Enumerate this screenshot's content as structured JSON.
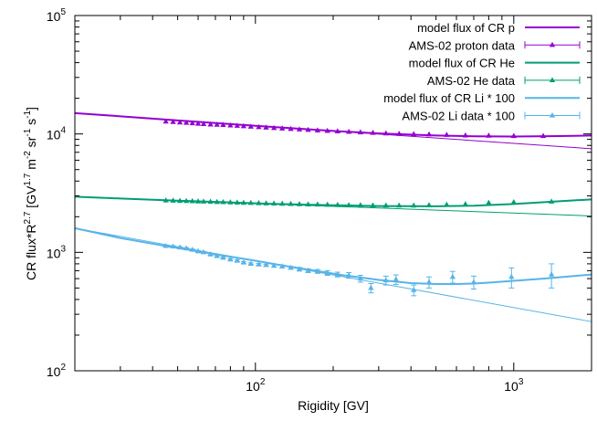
{
  "chart_data": {
    "type": "line",
    "title": "",
    "xlabel": "Rigidity [GV]",
    "ylabel": {
      "base": "CR flux*R",
      "exp": "2.7",
      "unit_open": " [GV",
      "unit_gv_exp": "1.7",
      "unit_m": " m",
      "unit_m_exp": "-2",
      "unit_sr": " sr",
      "unit_sr_exp": "-1",
      "unit_s": " s",
      "unit_s_exp": "-1",
      "unit_close": "]"
    },
    "x_scale": "log",
    "y_scale": "log",
    "xlim": [
      20,
      2000
    ],
    "ylim": [
      100,
      100000
    ],
    "x_ticks": [
      {
        "value": 100,
        "base": "10",
        "exp": "2"
      },
      {
        "value": 1000,
        "base": "10",
        "exp": "3"
      }
    ],
    "y_ticks": [
      {
        "value": 100,
        "base": "10",
        "exp": "2"
      },
      {
        "value": 1000,
        "base": "10",
        "exp": "3"
      },
      {
        "value": 10000,
        "base": "10",
        "exp": "4"
      },
      {
        "value": 100000,
        "base": "10",
        "exp": "5"
      }
    ],
    "grid": false,
    "legend_position": "top-right",
    "series": [
      {
        "name": "model flux of CR p",
        "kind": "model",
        "color": "#9400d3",
        "x": [
          20,
          30,
          50,
          80,
          120,
          200,
          300,
          500,
          700,
          1000,
          1500,
          2000
        ],
        "y": [
          15000,
          14100,
          13000,
          12100,
          11400,
          10600,
          10100,
          9700,
          9550,
          9500,
          9600,
          9700
        ]
      },
      {
        "name": "",
        "kind": "trend",
        "color": "#9400d3",
        "x": [
          20,
          2000
        ],
        "y": [
          15000,
          7500
        ]
      },
      {
        "name": "AMS-02 proton data",
        "kind": "data",
        "color": "#9400d3",
        "x": [
          45,
          48,
          51,
          54,
          57,
          60,
          63,
          67,
          71,
          75,
          80,
          85,
          90,
          96,
          103,
          110,
          118,
          127,
          137,
          148,
          160,
          174,
          190,
          208,
          230,
          255,
          285,
          320,
          360,
          410,
          470,
          550,
          650,
          800,
          1000,
          1300
        ],
        "y": [
          12700,
          12600,
          12500,
          12400,
          12300,
          12200,
          12100,
          12000,
          11950,
          11900,
          11800,
          11700,
          11600,
          11500,
          11400,
          11300,
          11200,
          11100,
          11000,
          10900,
          10800,
          10700,
          10600,
          10500,
          10400,
          10300,
          10200,
          10100,
          10000,
          9950,
          9900,
          9800,
          9700,
          9650,
          9600,
          9600
        ]
      },
      {
        "name": "model flux of CR He",
        "kind": "model",
        "color": "#009e73",
        "x": [
          20,
          30,
          50,
          80,
          120,
          200,
          300,
          500,
          700,
          1000,
          1500,
          2000
        ],
        "y": [
          2950,
          2850,
          2730,
          2640,
          2560,
          2500,
          2460,
          2450,
          2480,
          2560,
          2700,
          2800
        ]
      },
      {
        "name": "",
        "kind": "trend",
        "color": "#009e73",
        "x": [
          20,
          2000
        ],
        "y": [
          2950,
          2030
        ]
      },
      {
        "name": "AMS-02 He data",
        "kind": "data",
        "color": "#009e73",
        "x": [
          45,
          48,
          51,
          54,
          57,
          60,
          63,
          67,
          71,
          75,
          80,
          85,
          90,
          96,
          103,
          110,
          118,
          127,
          137,
          148,
          160,
          174,
          190,
          208,
          230,
          255,
          285,
          320,
          360,
          410,
          470,
          550,
          650,
          800,
          1000,
          1400
        ],
        "y": [
          2740,
          2730,
          2720,
          2710,
          2700,
          2690,
          2680,
          2670,
          2660,
          2650,
          2640,
          2630,
          2620,
          2610,
          2600,
          2590,
          2580,
          2570,
          2560,
          2550,
          2540,
          2530,
          2520,
          2510,
          2500,
          2500,
          2490,
          2480,
          2480,
          2480,
          2500,
          2520,
          2550,
          2620,
          2650,
          2680
        ]
      },
      {
        "name": "model flux of CR Li * 100",
        "kind": "model",
        "color": "#56b4e9",
        "x": [
          20,
          30,
          45,
          60,
          80,
          100,
          130,
          170,
          220,
          300,
          400,
          500,
          600,
          700,
          800,
          1000,
          1300,
          2000
        ],
        "y": [
          1600,
          1320,
          1130,
          1020,
          920,
          850,
          770,
          700,
          640,
          585,
          550,
          540,
          540,
          545,
          555,
          575,
          600,
          650
        ]
      },
      {
        "name": "",
        "kind": "trend",
        "color": "#56b4e9",
        "x": [
          20,
          2000
        ],
        "y": [
          1600,
          260
        ]
      },
      {
        "name": "AMS-02 Li data * 100",
        "kind": "data",
        "color": "#56b4e9",
        "x": [
          45,
          48,
          51,
          54,
          57,
          60,
          63,
          67,
          71,
          75,
          80,
          85,
          90,
          96,
          103,
          110,
          118,
          127,
          137,
          148,
          160,
          174,
          190,
          208,
          230,
          255,
          280,
          320,
          350,
          410,
          470,
          580,
          700,
          980,
          1400
        ],
        "y": [
          1130,
          1120,
          1100,
          1080,
          1050,
          1020,
          1000,
          960,
          930,
          900,
          870,
          850,
          820,
          800,
          790,
          780,
          770,
          760,
          740,
          720,
          700,
          690,
          670,
          650,
          640,
          600,
          500,
          580,
          590,
          480,
          560,
          620,
          560,
          620,
          650
        ],
        "err": [
          15,
          15,
          15,
          15,
          15,
          15,
          15,
          15,
          15,
          15,
          15,
          15,
          15,
          15,
          15,
          15,
          20,
          20,
          20,
          25,
          25,
          25,
          30,
          30,
          35,
          40,
          45,
          50,
          55,
          50,
          60,
          70,
          70,
          120,
          150
        ]
      }
    ]
  }
}
